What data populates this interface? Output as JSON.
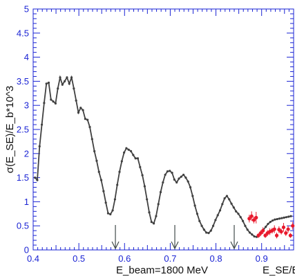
{
  "chart_data": {
    "type": "line",
    "xlabel": "E_SE/E_b",
    "ylabel": "σ(E_SE)/E_b*10^3",
    "annotation": "E_beam=1800 MeV",
    "xlim": [
      0.4,
      0.97
    ],
    "ylim": [
      0,
      5
    ],
    "x_ticks": [
      0.4,
      0.5,
      0.6,
      0.7,
      0.8,
      0.9
    ],
    "y_ticks": [
      0,
      0.5,
      1,
      1.5,
      2,
      2.5,
      3,
      3.5,
      4,
      4.5,
      5
    ],
    "x_tick_labels": [
      "0.4",
      "0.5",
      "0.6",
      "0.7",
      "0.8",
      "0.9"
    ],
    "y_tick_labels": [
      "0",
      "0.5",
      "1",
      "1.5",
      "2",
      "2.5",
      "3",
      "3.5",
      "4",
      "4.5",
      "5"
    ],
    "arrows_x": [
      0.58,
      0.71,
      0.84
    ],
    "colors": {
      "axes": "#1a23d4",
      "curve": "#404040",
      "measured": "#e8192c",
      "arrow": "#404a4a"
    },
    "series": [
      {
        "style": "line-markers",
        "x": [
          0.404,
          0.409,
          0.414,
          0.419,
          0.424,
          0.429,
          0.434,
          0.439,
          0.444,
          0.449,
          0.454,
          0.459,
          0.464,
          0.469,
          0.474,
          0.479,
          0.484,
          0.489,
          0.494,
          0.499,
          0.504,
          0.509,
          0.514,
          0.519,
          0.524,
          0.529,
          0.534,
          0.539,
          0.544,
          0.549,
          0.554,
          0.559,
          0.564,
          0.569,
          0.574,
          0.579,
          0.584,
          0.589,
          0.594,
          0.599,
          0.604,
          0.609,
          0.614,
          0.619,
          0.624,
          0.629,
          0.634,
          0.639,
          0.644,
          0.649,
          0.654,
          0.659,
          0.664,
          0.669,
          0.674,
          0.679,
          0.684,
          0.689,
          0.694,
          0.699,
          0.704,
          0.709,
          0.714,
          0.719,
          0.724,
          0.729,
          0.734,
          0.739,
          0.744,
          0.749,
          0.754,
          0.759,
          0.764,
          0.769,
          0.774,
          0.779,
          0.784,
          0.789,
          0.794,
          0.799,
          0.804,
          0.809,
          0.814,
          0.819,
          0.824,
          0.829,
          0.834,
          0.839,
          0.844,
          0.849,
          0.854,
          0.859,
          0.864,
          0.869,
          0.874,
          0.879,
          0.884,
          0.889,
          0.894,
          0.899,
          0.904,
          0.909,
          0.914,
          0.919,
          0.924,
          0.929,
          0.934,
          0.939,
          0.944,
          0.949,
          0.954,
          0.959,
          0.964
        ],
        "y": [
          1.5,
          1.45,
          2.15,
          2.6,
          3.05,
          3.45,
          3.47,
          3.12,
          3.08,
          3.04,
          3.35,
          3.58,
          3.43,
          3.5,
          3.58,
          3.45,
          3.58,
          3.35,
          3.1,
          2.85,
          2.95,
          2.9,
          2.72,
          2.7,
          2.55,
          2.3,
          2.05,
          1.85,
          1.62,
          1.45,
          1.22,
          0.98,
          0.76,
          0.74,
          0.82,
          1.05,
          1.35,
          1.62,
          1.84,
          2.02,
          2.11,
          2.08,
          2.05,
          1.97,
          1.9,
          1.9,
          1.72,
          1.55,
          1.32,
          1.05,
          0.78,
          0.58,
          0.55,
          0.7,
          0.95,
          1.2,
          1.4,
          1.56,
          1.63,
          1.64,
          1.6,
          1.46,
          1.4,
          1.48,
          1.52,
          1.56,
          1.5,
          1.42,
          1.3,
          1.12,
          0.92,
          0.75,
          0.6,
          0.5,
          0.42,
          0.36,
          0.35,
          0.4,
          0.5,
          0.62,
          0.72,
          0.82,
          0.95,
          1.07,
          1.12,
          1.05,
          0.96,
          0.88,
          0.8,
          0.75,
          0.68,
          0.6,
          0.5,
          0.42,
          0.36,
          0.32,
          0.28,
          0.27,
          0.3,
          0.36,
          0.42,
          0.48,
          0.54,
          0.58,
          0.61,
          0.63,
          0.64,
          0.65,
          0.66,
          0.67,
          0.68,
          0.69,
          0.7
        ]
      },
      {
        "style": "points-errorbars",
        "x": [
          0.873,
          0.878,
          0.883,
          0.888,
          0.893,
          0.898,
          0.903,
          0.908,
          0.913,
          0.918,
          0.923,
          0.928,
          0.933,
          0.938,
          0.943,
          0.948,
          0.953,
          0.958,
          0.963,
          0.968
        ],
        "y": [
          0.65,
          0.7,
          0.62,
          0.67,
          0.3,
          0.35,
          0.4,
          0.3,
          0.35,
          0.38,
          0.4,
          0.43,
          0.3,
          0.42,
          0.38,
          0.47,
          0.35,
          0.43,
          0.3,
          0.5
        ],
        "err": [
          0.08,
          0.1,
          0.07,
          0.12,
          0.05,
          0.06,
          0.07,
          0.05,
          0.06,
          0.07,
          0.06,
          0.08,
          0.06,
          0.07,
          0.06,
          0.09,
          0.06,
          0.07,
          0.05,
          0.08
        ]
      }
    ]
  }
}
